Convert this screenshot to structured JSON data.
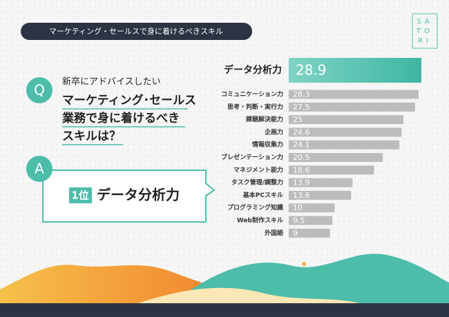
{
  "header": {
    "title": "マーケティング・セールスで身に着けるべきスキル",
    "logo": [
      "SA",
      "TO",
      "RI"
    ]
  },
  "question": {
    "mark": "Q",
    "lead": "新卒にアドバイスしたい",
    "lines": [
      "マーケティング･セールス",
      "業務で身に着けるべき",
      "スキルは？"
    ]
  },
  "answer": {
    "mark": "A",
    "rank": "1位",
    "text": "データ分析力"
  },
  "chart_data": {
    "type": "bar",
    "orientation": "horizontal",
    "categories": [
      "データ分析力",
      "コミュニケーション力",
      "思考・判断・実行力",
      "課題解決能力",
      "企画力",
      "情報収集力",
      "プレゼンテーション力",
      "マネジメント能力",
      "タスク管理/調整力",
      "基本PCスキル",
      "プログラミング知識",
      "Web制作スキル",
      "外国語"
    ],
    "values": [
      28.9,
      28.3,
      27.5,
      25,
      24.6,
      24.1,
      20.5,
      18.6,
      13.9,
      13.6,
      10,
      9.5,
      9
    ],
    "color": "#bcbcbc",
    "highlight_color": "#4dbdaa"
  }
}
